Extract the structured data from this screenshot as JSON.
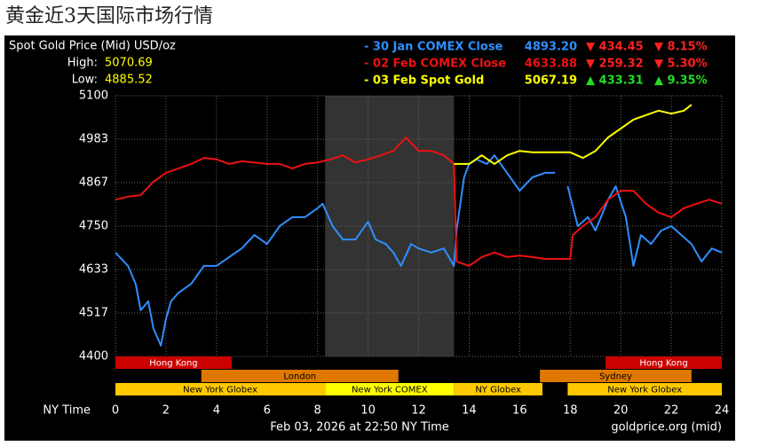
{
  "page_title": "黄金近3天国际市场行情",
  "chart_data": {
    "type": "line",
    "title": "Spot Gold Price (Mid) USD/oz",
    "high": {
      "label": "High:",
      "value": "5070.69"
    },
    "low": {
      "label": "Low:",
      "value": "4885.52"
    },
    "x_label": "NY Time",
    "footer": "Feb 03, 2026 at 22:50 NY Time",
    "source": "goldprice.org (mid)",
    "xlim": [
      0,
      24
    ],
    "xticks": [
      0,
      2,
      4,
      6,
      8,
      10,
      12,
      14,
      16,
      18,
      20,
      22,
      24
    ],
    "ylim": [
      4400,
      5100
    ],
    "yticks": [
      4400,
      4517,
      4633,
      4750,
      4867,
      4983,
      5100
    ],
    "grid": true,
    "shade": {
      "start": 8.3,
      "end": 13.4
    },
    "sessions": [
      {
        "label": "Hong Kong",
        "start": 0,
        "end": 4.6,
        "row": 0,
        "color": "#cc0000"
      },
      {
        "label": "Hong Kong",
        "start": 19.4,
        "end": 24,
        "row": 0,
        "color": "#cc0000"
      },
      {
        "label": "London",
        "start": 3.4,
        "end": 11.2,
        "row": 1,
        "color": "#e07800"
      },
      {
        "label": "Sydney",
        "start": 16.8,
        "end": 22.8,
        "row": 1,
        "color": "#e07800"
      },
      {
        "label": "New York Globex",
        "start": 0,
        "end": 8.3,
        "row": 2,
        "color": "#ffc800"
      },
      {
        "label": "New York COMEX",
        "start": 8.3,
        "end": 13.4,
        "row": 2,
        "color": "#ffff00"
      },
      {
        "label": "NY Globex",
        "start": 13.4,
        "end": 16.9,
        "row": 2,
        "color": "#ffc800"
      },
      {
        "label": "New York Globex",
        "start": 17.9,
        "end": 24,
        "row": 2,
        "color": "#ffc800"
      }
    ],
    "series": [
      {
        "name": "- 30 Jan COMEX Close",
        "color": "#2f8fff",
        "close": "4893.20",
        "change": "▼ 434.45",
        "change_pct": "▼ 8.15%",
        "change_color": "#ff2020",
        "x": [
          0,
          0.5,
          0.8,
          1,
          1.3,
          1.5,
          1.8,
          2,
          2.2,
          2.5,
          3,
          3.5,
          4,
          4.5,
          5,
          5.5,
          6,
          6.5,
          7,
          7.5,
          8,
          8.2,
          8.6,
          9,
          9.5,
          10,
          10.3,
          10.7,
          11,
          11.3,
          11.7,
          12,
          12.5,
          13,
          13.4,
          13.5,
          13.8,
          14,
          14.3,
          14.7,
          15,
          15.5,
          16,
          16.5,
          17,
          17.4,
          17.6,
          17.9,
          18.3,
          18.7,
          19,
          19.5,
          19.8,
          20.2,
          20.5,
          20.8,
          21.2,
          21.6,
          22,
          22.4,
          22.8,
          23.2,
          23.6,
          24
        ],
        "values": [
          4679,
          4643,
          4595,
          4524,
          4548,
          4476,
          4429,
          4500,
          4548,
          4571,
          4595,
          4643,
          4643,
          4667,
          4690,
          4726,
          4702,
          4750,
          4774,
          4774,
          4798,
          4810,
          4750,
          4714,
          4714,
          4762,
          4714,
          4702,
          4679,
          4643,
          4702,
          4690,
          4679,
          4690,
          4643,
          4738,
          4881,
          4917,
          4929,
          4917,
          4940,
          4893,
          4845,
          4881,
          4893,
          4893,
          null,
          4857,
          4750,
          4774,
          4738,
          4821,
          4857,
          4774,
          4643,
          4726,
          4702,
          4738,
          4750,
          4726,
          4702,
          4655,
          4690,
          4679
        ]
      },
      {
        "name": "- 02 Feb COMEX Close",
        "color": "#ee1111",
        "close": "4633.88",
        "change": "▼ 259.32",
        "change_pct": "▼ 5.30%",
        "change_color": "#ff2020",
        "x": [
          0,
          0.5,
          1,
          1.5,
          2,
          2.5,
          3,
          3.5,
          4,
          4.5,
          5,
          5.5,
          6,
          6.5,
          7,
          7.5,
          8,
          8.5,
          9,
          9.5,
          10,
          10.5,
          11,
          11.5,
          12,
          12.5,
          13,
          13.4,
          13.5,
          14,
          14.5,
          15,
          15.5,
          16,
          16.5,
          17,
          18,
          18.1,
          18.5,
          19,
          19.5,
          20,
          20.5,
          21,
          21.5,
          22,
          22.5,
          23,
          23.5,
          24
        ],
        "values": [
          4821,
          4829,
          4833,
          4869,
          4893,
          4905,
          4917,
          4933,
          4929,
          4917,
          4924,
          4921,
          4917,
          4917,
          4905,
          4917,
          4921,
          4929,
          4940,
          4921,
          4929,
          4940,
          4952,
          4988,
          4952,
          4952,
          4940,
          4917,
          4655,
          4643,
          4667,
          4679,
          4667,
          4671,
          4667,
          4662,
          4662,
          4726,
          4750,
          4774,
          4821,
          4845,
          4845,
          4810,
          4786,
          4774,
          4798,
          4810,
          4821,
          4810
        ]
      },
      {
        "name": "- 03 Feb Spot Gold",
        "color": "#ffff00",
        "close": "5067.19",
        "change": "▲ 433.31",
        "change_pct": "▲ 9.35%",
        "change_color": "#22dd22",
        "x": [
          13.4,
          14,
          14.5,
          15,
          15.5,
          16,
          16.5,
          17,
          18,
          18.5,
          19,
          19.5,
          20,
          20.5,
          21,
          21.5,
          22,
          22.5,
          22.8
        ],
        "values": [
          4917,
          4917,
          4940,
          4917,
          4940,
          4952,
          4948,
          4948,
          4948,
          4933,
          4952,
          4988,
          5012,
          5036,
          5048,
          5060,
          5052,
          5060,
          5076
        ]
      }
    ]
  }
}
